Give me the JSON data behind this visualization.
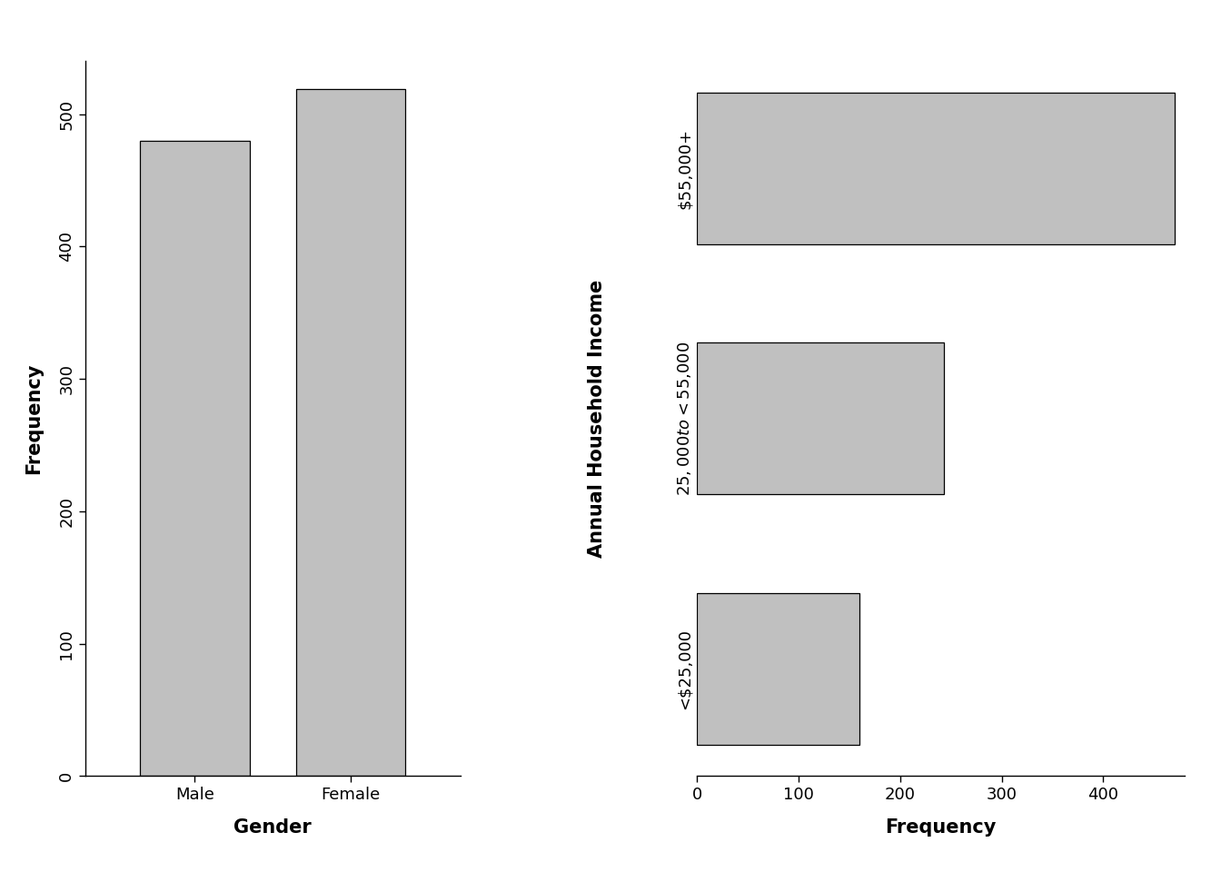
{
  "left": {
    "categories": [
      "Male",
      "Female"
    ],
    "values": [
      480,
      519
    ],
    "xlabel": "Gender",
    "ylabel": "Frequency",
    "ylim": [
      0,
      540
    ],
    "yticks": [
      0,
      100,
      200,
      300,
      400,
      500
    ]
  },
  "right": {
    "categories": [
      "<$25,000",
      "$25,000 to <$55,000",
      "$55,000+"
    ],
    "values": [
      160,
      243,
      470
    ],
    "xlabel": "Frequency",
    "ylabel": "Annual Household Income",
    "xlim": [
      0,
      480
    ],
    "xticks": [
      0,
      100,
      200,
      300,
      400
    ]
  },
  "bar_color": "#c0c0c0",
  "bar_edge_color": "#000000",
  "background_color": "#ffffff",
  "axis_label_fontsize": 15,
  "tick_fontsize": 13
}
